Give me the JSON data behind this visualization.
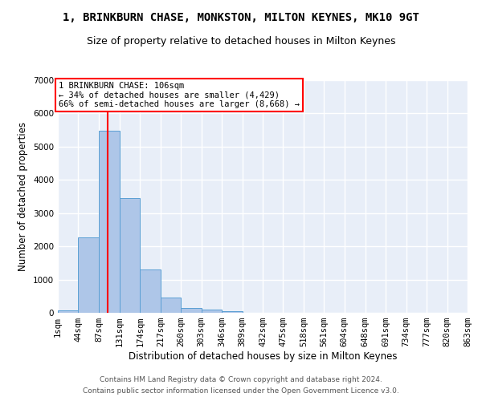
{
  "title": "1, BRINKBURN CHASE, MONKSTON, MILTON KEYNES, MK10 9GT",
  "subtitle": "Size of property relative to detached houses in Milton Keynes",
  "xlabel": "Distribution of detached houses by size in Milton Keynes",
  "ylabel": "Number of detached properties",
  "bar_color": "#aec6e8",
  "bar_edge_color": "#5a9fd4",
  "background_color": "#e8eef8",
  "grid_color": "#ffffff",
  "bins": [
    1,
    44,
    87,
    131,
    174,
    217,
    260,
    303,
    346,
    389,
    432,
    475,
    518,
    561,
    604,
    648,
    691,
    734,
    777,
    820,
    863
  ],
  "values": [
    75,
    2280,
    5480,
    3440,
    1310,
    460,
    155,
    85,
    55,
    0,
    0,
    0,
    0,
    0,
    0,
    0,
    0,
    0,
    0,
    0
  ],
  "tick_labels": [
    "1sqm",
    "44sqm",
    "87sqm",
    "131sqm",
    "174sqm",
    "217sqm",
    "260sqm",
    "303sqm",
    "346sqm",
    "389sqm",
    "432sqm",
    "475sqm",
    "518sqm",
    "561sqm",
    "604sqm",
    "648sqm",
    "691sqm",
    "734sqm",
    "777sqm",
    "820sqm",
    "863sqm"
  ],
  "ylim": [
    0,
    7000
  ],
  "yticks": [
    0,
    1000,
    2000,
    3000,
    4000,
    5000,
    6000,
    7000
  ],
  "vline_x": 106,
  "annotation_text": "1 BRINKBURN CHASE: 106sqm\n← 34% of detached houses are smaller (4,429)\n66% of semi-detached houses are larger (8,668) →",
  "annotation_box_color": "white",
  "annotation_box_edge_color": "red",
  "vline_color": "red",
  "footer_line1": "Contains HM Land Registry data © Crown copyright and database right 2024.",
  "footer_line2": "Contains public sector information licensed under the Open Government Licence v3.0.",
  "title_fontsize": 10,
  "subtitle_fontsize": 9,
  "axis_label_fontsize": 8.5,
  "tick_fontsize": 7.5,
  "annotation_fontsize": 7.5,
  "footer_fontsize": 6.5
}
